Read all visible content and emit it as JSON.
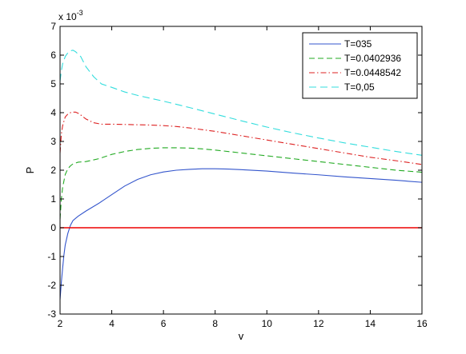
{
  "chart_data": {
    "type": "line",
    "title": "",
    "xlabel": "v",
    "ylabel": "P",
    "xlim": [
      2,
      16
    ],
    "ylim": [
      -3,
      7
    ],
    "y_multiplier_label": "x 10",
    "y_multiplier_exponent": "-3",
    "x_ticks": [
      2,
      4,
      6,
      8,
      10,
      12,
      14,
      16
    ],
    "y_ticks": [
      -3,
      -2,
      -1,
      0,
      1,
      2,
      3,
      4,
      5,
      6,
      7
    ],
    "grid": false,
    "legend_position": "top-right",
    "series": [
      {
        "name": "T=035",
        "color": "#3355cc",
        "dash": "",
        "x": [
          2.0,
          2.05,
          2.1,
          2.15,
          2.2,
          2.3,
          2.4,
          2.5,
          2.7,
          3.0,
          3.5,
          4.0,
          4.5,
          5.0,
          5.5,
          6.0,
          6.5,
          7.0,
          7.5,
          8.0,
          8.5,
          9.0,
          10.0,
          11.0,
          12.0,
          13.0,
          14.0,
          15.0,
          16.0
        ],
        "y": [
          -2.5,
          -1.9,
          -1.4,
          -0.95,
          -0.6,
          -0.2,
          0.08,
          0.25,
          0.4,
          0.58,
          0.85,
          1.15,
          1.45,
          1.68,
          1.84,
          1.94,
          2.0,
          2.03,
          2.05,
          2.05,
          2.04,
          2.02,
          1.97,
          1.9,
          1.84,
          1.77,
          1.71,
          1.65,
          1.58
        ]
      },
      {
        "name": "T=0.0402936",
        "color": "#22aa22",
        "dash": "7,4",
        "x": [
          2.0,
          2.05,
          2.1,
          2.2,
          2.3,
          2.4,
          2.5,
          2.7,
          3.0,
          3.5,
          4.0,
          4.5,
          5.0,
          5.5,
          6.0,
          6.5,
          7.0,
          7.5,
          8.0,
          9.0,
          10.0,
          11.0,
          12.0,
          13.0,
          14.0,
          15.0,
          16.0
        ],
        "y": [
          0.3,
          1.0,
          1.4,
          1.85,
          2.05,
          2.15,
          2.22,
          2.28,
          2.3,
          2.4,
          2.55,
          2.65,
          2.72,
          2.76,
          2.78,
          2.78,
          2.77,
          2.74,
          2.7,
          2.6,
          2.5,
          2.4,
          2.3,
          2.2,
          2.1,
          2.0,
          1.93
        ]
      },
      {
        "name": "T=0.0448542",
        "color": "#dd2222",
        "dash": "7,3,1.5,3",
        "x": [
          2.0,
          2.05,
          2.1,
          2.2,
          2.3,
          2.4,
          2.5,
          2.6,
          2.7,
          2.8,
          3.0,
          3.3,
          3.6,
          4.0,
          4.5,
          5.0,
          5.5,
          6.0,
          6.5,
          7.0,
          8.0,
          9.0,
          10.0,
          11.0,
          12.0,
          13.0,
          14.0,
          15.0,
          16.0
        ],
        "y": [
          2.6,
          3.25,
          3.55,
          3.85,
          3.95,
          4.0,
          4.02,
          4.02,
          3.98,
          3.92,
          3.78,
          3.65,
          3.6,
          3.6,
          3.59,
          3.58,
          3.57,
          3.55,
          3.52,
          3.47,
          3.35,
          3.2,
          3.05,
          2.9,
          2.75,
          2.6,
          2.45,
          2.33,
          2.2
        ]
      },
      {
        "name": "T=0,05",
        "color": "#33dddd",
        "dash": "9,5",
        "x": [
          2.0,
          2.05,
          2.1,
          2.2,
          2.3,
          2.4,
          2.5,
          2.6,
          2.8,
          3.0,
          3.3,
          3.6,
          4.0,
          4.5,
          5.0,
          6.0,
          7.0,
          8.0,
          9.0,
          10.0,
          11.0,
          12.0,
          13.0,
          14.0,
          15.0,
          16.0
        ],
        "y": [
          5.1,
          5.45,
          5.7,
          5.95,
          6.08,
          6.15,
          6.17,
          6.12,
          5.95,
          5.6,
          5.25,
          5.0,
          4.88,
          4.72,
          4.6,
          4.4,
          4.18,
          3.95,
          3.72,
          3.5,
          3.3,
          3.12,
          2.95,
          2.8,
          2.65,
          2.52
        ]
      },
      {
        "name": "",
        "color": "#ee0000",
        "dash": "",
        "x": [
          2.0,
          16.0
        ],
        "y": [
          0,
          0
        ]
      }
    ]
  }
}
